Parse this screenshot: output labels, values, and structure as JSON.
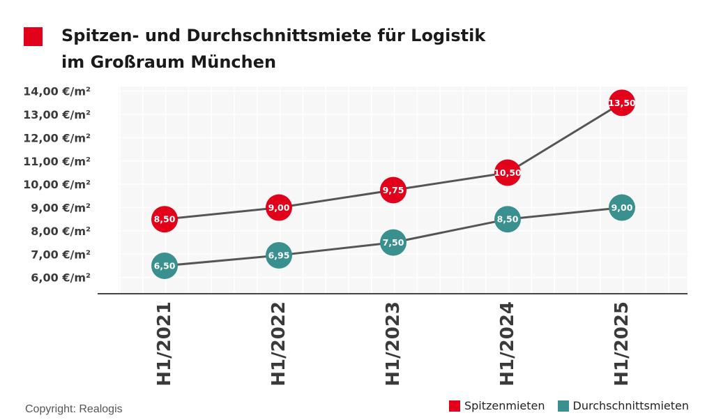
{
  "title": {
    "line1": "Spitzen- und Durchschnittsmiete für Logistik",
    "line2": "im Großraum München",
    "marker_color": "#e2001a"
  },
  "copyright": "Copyright: Realogis",
  "chart_data": {
    "type": "line",
    "title": "Spitzen- und Durchschnittsmiete für Logistik im Großraum München",
    "categories": [
      "H1/2021",
      "H1/2022",
      "H1/2023",
      "H1/2024",
      "H1/2025"
    ],
    "y_ticks": [
      6,
      7,
      8,
      9,
      10,
      11,
      12,
      13,
      14
    ],
    "y_tick_labels": [
      "6,00 €/m²",
      "7,00 €/m²",
      "8,00 €/m²",
      "9,00 €/m²",
      "10,00 €/m²",
      "11,00 €/m²",
      "12,00 €/m²",
      "13,00 €/m²",
      "14,00 €/m²"
    ],
    "ylim": [
      5.3,
      14.2
    ],
    "grid": true,
    "legend_position": "bottom-right",
    "series": [
      {
        "name": "Spitzenmieten",
        "color": "#e2001a",
        "values": [
          8.5,
          9.0,
          9.75,
          10.5,
          13.5
        ],
        "labels": [
          "8,50",
          "9,00",
          "9,75",
          "10,50",
          "13,50"
        ]
      },
      {
        "name": "Durchschnittsmieten",
        "color": "#3a8f8f",
        "values": [
          6.5,
          6.95,
          7.5,
          8.5,
          9.0
        ],
        "labels": [
          "6,50",
          "6,95",
          "7,50",
          "8,50",
          "9,00"
        ]
      }
    ],
    "line_color": "#555555"
  }
}
